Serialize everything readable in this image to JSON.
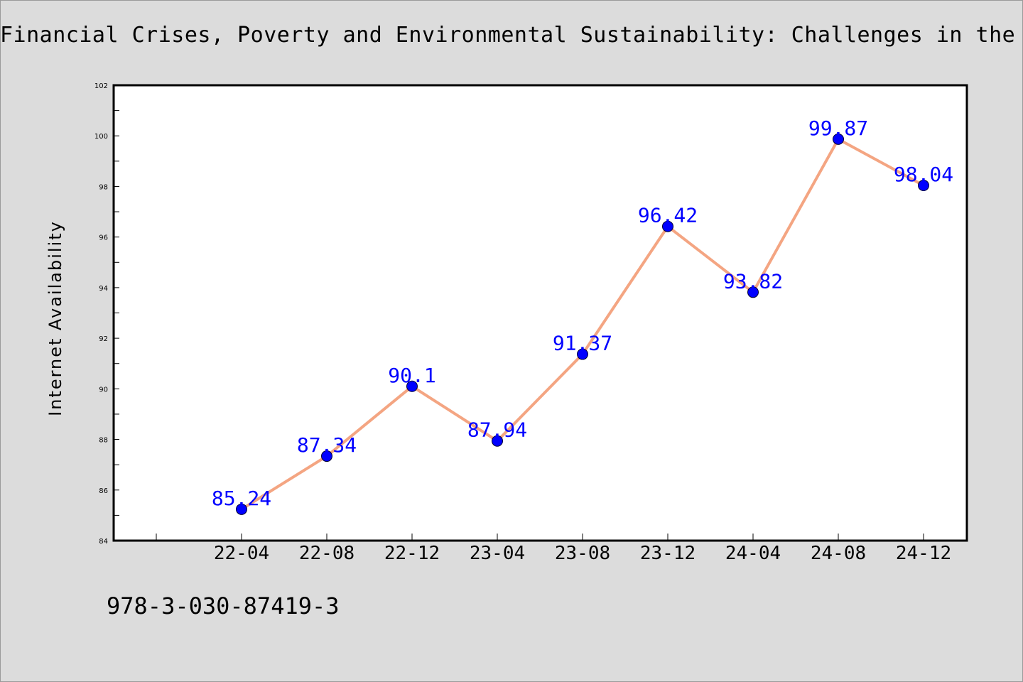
{
  "title": "Financial Crises, Poverty and Environmental Sustainability: Challenges in the Co",
  "footer_text": "978-3-030-87419-3",
  "chart_data": {
    "type": "line",
    "title": "Financial Crises, Poverty and Environmental Sustainability: Challenges in the Co",
    "xlabel": "",
    "ylabel": "Internet Availability",
    "categories": [
      "22-04",
      "22-08",
      "22-12",
      "23-04",
      "23-08",
      "23-12",
      "24-04",
      "24-08",
      "24-12"
    ],
    "series": [
      {
        "values": [
          85.24,
          87.34,
          90.1,
          87.94,
          91.37,
          96.42,
          93.82,
          99.87,
          98.04
        ]
      }
    ],
    "data_labels": [
      "85.24",
      "87.34",
      "90.1",
      "87.94",
      "91.37",
      "96.42",
      "93.82",
      "99.87",
      "98.04"
    ],
    "ylim": [
      84,
      102
    ],
    "yticks": [
      84,
      86,
      88,
      90,
      92,
      94,
      96,
      98,
      100,
      102
    ],
    "grid": false,
    "colors": {
      "line": "#f4a582",
      "marker": "#0000ff",
      "label": "#0000ff"
    }
  }
}
